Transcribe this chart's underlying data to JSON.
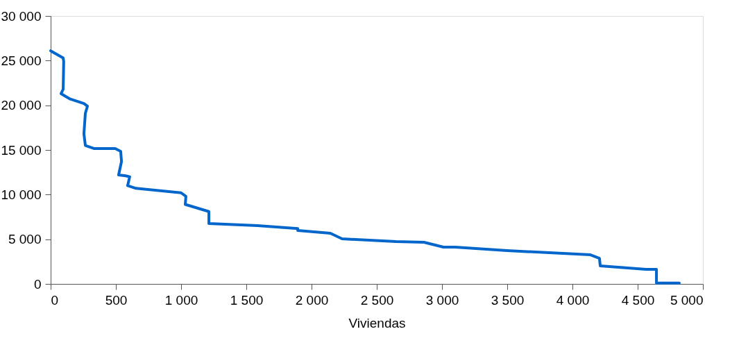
{
  "chart_data": {
    "type": "line",
    "xlabel": "Viviendas",
    "x": [
      0,
      96,
      100,
      96,
      80,
      150,
      255,
      282,
      266,
      255,
      266,
      335,
      495,
      537,
      543,
      521,
      574,
      606,
      590,
      654,
      1000,
      1037,
      1032,
      1213,
      1213,
      1585,
      1894,
      1894,
      2144,
      2234,
      2649,
      2862,
      3011,
      3101,
      3500,
      4138,
      4207,
      4213,
      4564,
      4644,
      4644,
      4819
    ],
    "series": [
      {
        "color": "#0066cc",
        "values": [
          26100,
          25300,
          24900,
          21800,
          21300,
          20700,
          20200,
          19900,
          19100,
          16800,
          15500,
          15150,
          15150,
          14840,
          13700,
          12200,
          12100,
          12000,
          11000,
          10700,
          10200,
          9800,
          8900,
          8100,
          6760,
          6530,
          6200,
          5980,
          5670,
          5050,
          4740,
          4660,
          4120,
          4120,
          3730,
          3260,
          2870,
          2020,
          1630,
          1630,
          100,
          100
        ]
      }
    ],
    "xlim": [
      0,
      5000
    ],
    "ylim": [
      0,
      30000
    ],
    "xticks": [
      0,
      500,
      {
        "value": 1000,
        "label": "1 000"
      },
      {
        "value": 1500,
        "label": "1 500"
      },
      {
        "value": 2000,
        "label": "2 000"
      },
      {
        "value": 2500,
        "label": "2 500"
      },
      {
        "value": 3000,
        "label": "3 000"
      },
      {
        "value": 3500,
        "label": "3 500"
      },
      {
        "value": 4000,
        "label": "4 000"
      },
      {
        "value": 4500,
        "label": "4 500"
      },
      {
        "value": 5000,
        "label": "5 000"
      }
    ],
    "yticks": [
      0,
      {
        "value": 5000,
        "label": "5 000"
      },
      {
        "value": 10000,
        "label": "10 000"
      },
      {
        "value": 15000,
        "label": "15 000"
      },
      {
        "value": 20000,
        "label": "20 000"
      },
      {
        "value": 25000,
        "label": "25 000"
      },
      {
        "value": 30000,
        "label": "30 000"
      }
    ],
    "grid": false,
    "marker": "none",
    "line_style": "solid"
  }
}
